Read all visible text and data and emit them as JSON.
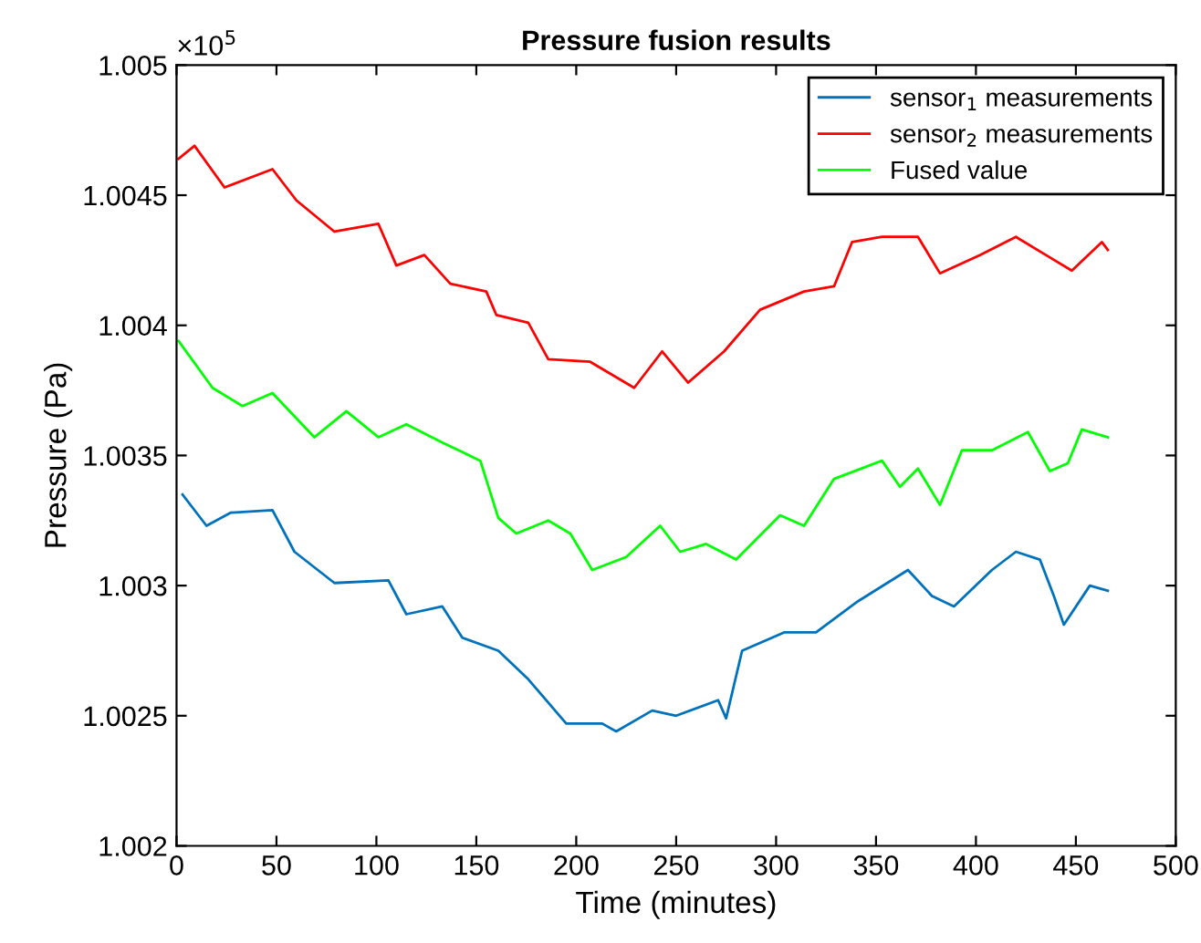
{
  "chart_data": {
    "type": "line",
    "title": "Pressure fusion results",
    "xlabel": "Time (minutes)",
    "ylabel": "Pressure (Pa)",
    "annotations": [
      "×10$^{5}$"
    ],
    "xlim": [
      0,
      500
    ],
    "xticks": [
      0,
      50,
      100,
      150,
      200,
      250,
      300,
      350,
      400,
      450,
      500
    ],
    "ylim": [
      1.002,
      1.005
    ],
    "yticks": [
      1.002,
      1.0025,
      1.003,
      1.0035,
      1.004,
      1.0045,
      1.005
    ],
    "grid": false,
    "legend": "top right",
    "line_style": "solid",
    "marker": "none",
    "series": [
      {
        "name": "sensor$_{1}$ measurements",
        "color": "#0072bd",
        "x": [
          3,
          15,
          27,
          48,
          59,
          79,
          106,
          115,
          133,
          143,
          161,
          176,
          195,
          213,
          220,
          238,
          250,
          271,
          275,
          283,
          304,
          320,
          341,
          366,
          378,
          389,
          408,
          420,
          432,
          439,
          444,
          457,
          466
        ],
        "values": [
          1.00335,
          1.00323,
          1.00328,
          1.00329,
          1.00313,
          1.00301,
          1.00302,
          1.00289,
          1.00292,
          1.0028,
          1.00275,
          1.00264,
          1.00247,
          1.00247,
          1.00244,
          1.00252,
          1.0025,
          1.00256,
          1.00249,
          1.00275,
          1.00282,
          1.00282,
          1.00294,
          1.00306,
          1.00296,
          1.00292,
          1.00306,
          1.00313,
          1.0031,
          1.00296,
          1.00285,
          1.003,
          1.00298
        ]
      },
      {
        "name": "sensor$_{2}$ measurements",
        "color": "#ff0000",
        "x": [
          1,
          9,
          24,
          48,
          60,
          79,
          101,
          110,
          124,
          137,
          155,
          160,
          176,
          186,
          207,
          229,
          243,
          256,
          274,
          292,
          314,
          329,
          338,
          353,
          371,
          382,
          402,
          420,
          435,
          448,
          463,
          466
        ],
        "values": [
          1.00464,
          1.00469,
          1.00453,
          1.0046,
          1.00448,
          1.00436,
          1.00439,
          1.00423,
          1.00427,
          1.00416,
          1.00413,
          1.00404,
          1.00401,
          1.00387,
          1.00386,
          1.00376,
          1.0039,
          1.00378,
          1.0039,
          1.00406,
          1.00413,
          1.00415,
          1.00432,
          1.00434,
          1.00434,
          1.0042,
          1.00427,
          1.00434,
          1.00427,
          1.00421,
          1.00432,
          1.00429
        ]
      },
      {
        "name": "Fused value",
        "color": "#00ff00",
        "x": [
          1,
          18,
          33,
          48,
          69,
          85,
          101,
          115,
          133,
          152,
          161,
          170,
          186,
          197,
          208,
          225,
          242,
          252,
          265,
          280,
          302,
          314,
          329,
          353,
          362,
          371,
          382,
          393,
          408,
          426,
          437,
          446,
          453,
          466
        ],
        "values": [
          1.00394,
          1.00376,
          1.00369,
          1.00374,
          1.00357,
          1.00367,
          1.00357,
          1.00362,
          1.00355,
          1.00348,
          1.00326,
          1.0032,
          1.00325,
          1.0032,
          1.00306,
          1.00311,
          1.00323,
          1.00313,
          1.00316,
          1.0031,
          1.00327,
          1.00323,
          1.00341,
          1.00348,
          1.00338,
          1.00345,
          1.00331,
          1.00352,
          1.00352,
          1.00359,
          1.00344,
          1.00347,
          1.0036,
          1.00357
        ]
      }
    ]
  }
}
